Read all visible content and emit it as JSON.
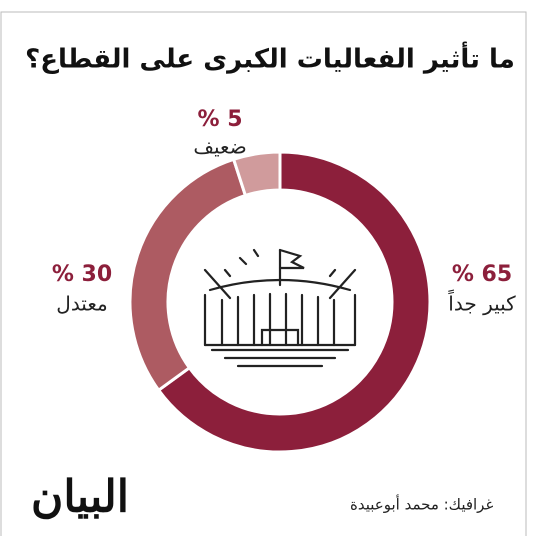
{
  "chart_data": {
    "type": "donut",
    "title": "ما تأثير الفعاليات الكبرى على القطاع؟",
    "categories": [
      "كبير جداً",
      "معتدل",
      "ضعيف"
    ],
    "values": [
      65,
      30,
      5
    ],
    "value_labels": [
      "65 %",
      "30 %",
      "5 %"
    ],
    "colors": [
      "#8c1f3b",
      "#ad5b62",
      "#d09b9c"
    ]
  },
  "footer": {
    "credit": "غرافيك: محمد أبوعبيدة",
    "logo": "البيان"
  }
}
